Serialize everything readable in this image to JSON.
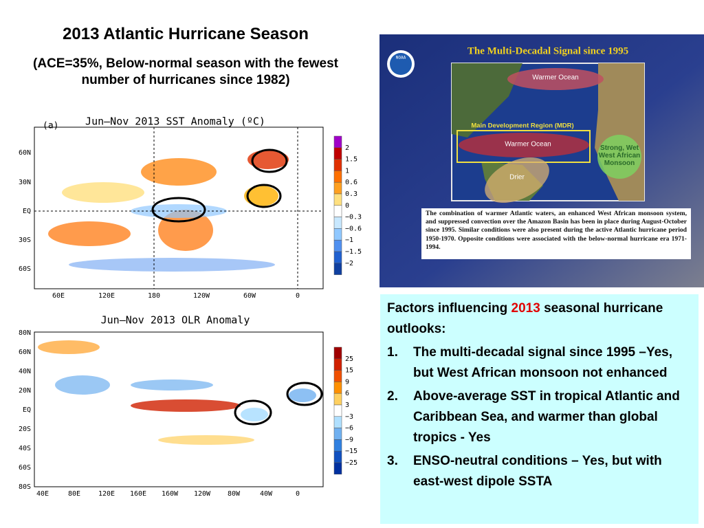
{
  "title": "2013 Atlantic Hurricane Season",
  "subtitle": "(ACE=35%, Below-normal season with the fewest number of hurricanes since 1982)",
  "sst_map": {
    "label": "(a)",
    "title": "Jun–Nov 2013 SST Anomaly (ºC)",
    "y_labels": [
      "60N",
      "30N",
      "EQ",
      "30S",
      "60S"
    ],
    "x_labels": [
      "60E",
      "120E",
      "180",
      "120W",
      "60W",
      "0"
    ],
    "legend": [
      "2",
      "1.5",
      "1",
      "0.6",
      "0.3",
      "0",
      "−0.3",
      "−0.6",
      "−1",
      "−1.5",
      "−2"
    ]
  },
  "olr_map": {
    "title": "Jun–Nov 2013 OLR Anomaly",
    "y_labels": [
      "80N",
      "60N",
      "40N",
      "20N",
      "EQ",
      "20S",
      "40S",
      "60S",
      "80S"
    ],
    "x_labels": [
      "40E",
      "80E",
      "120E",
      "160E",
      "160W",
      "120W",
      "80W",
      "40W",
      "0"
    ],
    "legend": [
      "25",
      "15",
      "9",
      "6",
      "3",
      "−3",
      "−6",
      "−9",
      "−15",
      "−25"
    ]
  },
  "mdr_figure": {
    "logo": "NOAA",
    "title": "The Multi-Decadal Signal since 1995",
    "labels": [
      "Warmer Ocean",
      "Main Development Region (MDR)",
      "Warmer Ocean",
      "Drier",
      "Strong, Wet West African Monsoon"
    ],
    "caption": "The combination of warmer Atlantic waters, an enhanced West African monsoon system, and suppressed convection over the Amazon Basin has been in place during August-October since 1995. Similar conditions were also present during the active Atlantic hurricane period 1950-1970. Opposite conditions were associated with the below-normal hurricane era 1971-1994."
  },
  "factors": {
    "heading_before": "Factors influencing ",
    "heading_year": "2013",
    "heading_after": " seasonal hurricane outlooks:",
    "items": [
      {
        "number": "1.",
        "text": "The multi-decadal signal since 1995 –Yes, but West African monsoon not enhanced"
      },
      {
        "number": "2.",
        "text": "Above-average SST in tropical Atlantic and Caribbean Sea, and warmer than global tropics - Yes"
      },
      {
        "number": "3.",
        "text": "ENSO-neutral conditions – Yes, but with east-west dipole SSTA"
      }
    ]
  }
}
